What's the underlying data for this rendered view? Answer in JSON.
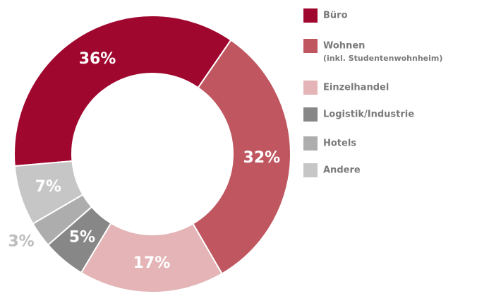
{
  "chart_data": {
    "type": "donut",
    "categories": [
      "Büro",
      "Wohnen",
      "Einzelhandel",
      "Logistik/Industrie",
      "Hotels",
      "Andere"
    ],
    "legend_notes": [
      null,
      "(inkl. Studentenwohnheim)",
      null,
      null,
      null,
      null
    ],
    "values": [
      36,
      32,
      17,
      5,
      3,
      7
    ],
    "value_labels": [
      "36%",
      "32%",
      "17%",
      "5%",
      "3%",
      "7%"
    ],
    "colors": [
      "#a0072f",
      "#bf5660",
      "#e4b4b6",
      "#878787",
      "#adadad",
      "#c6c6c6"
    ]
  }
}
